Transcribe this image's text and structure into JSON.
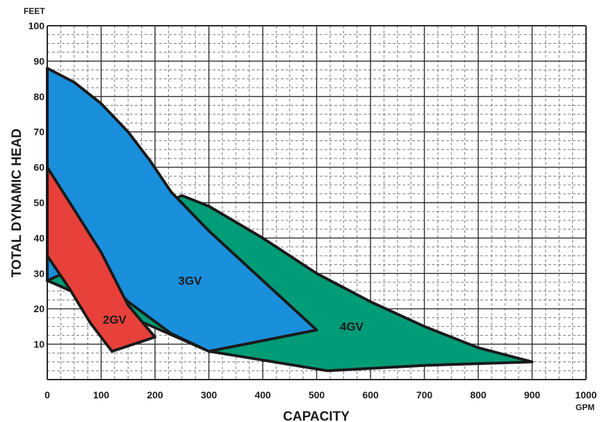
{
  "chart_data": {
    "type": "area",
    "title": "",
    "xlabel": "CAPACITY",
    "ylabel": "TOTAL DYNAMIC HEAD",
    "x_unit": "GPM",
    "y_unit": "FEET",
    "xlim": [
      0,
      1000
    ],
    "ylim": [
      0,
      100
    ],
    "x_ticks": [
      "0",
      "100",
      "200",
      "300",
      "400",
      "500",
      "600",
      "700",
      "800",
      "900",
      "1000"
    ],
    "y_ticks": [
      "10",
      "20",
      "30",
      "40",
      "50",
      "60",
      "70",
      "80",
      "90",
      "100"
    ],
    "grid": true,
    "legend": "none",
    "series": [
      {
        "name": "4GV",
        "color": "#009b77",
        "label_at": [
          565,
          15
        ],
        "points": [
          [
            0,
            28
          ],
          [
            0,
            35
          ],
          [
            250,
            52
          ],
          [
            300,
            49
          ],
          [
            400,
            40
          ],
          [
            500,
            30
          ],
          [
            600,
            22
          ],
          [
            700,
            15
          ],
          [
            800,
            9
          ],
          [
            900,
            5
          ],
          [
            700,
            4
          ],
          [
            520,
            2.5
          ],
          [
            420,
            5
          ],
          [
            300,
            8
          ]
        ]
      },
      {
        "name": "3GV",
        "color": "#1a8fdc",
        "label_at": [
          265,
          28
        ],
        "points": [
          [
            0,
            88
          ],
          [
            50,
            84
          ],
          [
            100,
            78
          ],
          [
            150,
            70
          ],
          [
            190,
            62
          ],
          [
            230,
            53
          ],
          [
            300,
            42
          ],
          [
            400,
            28
          ],
          [
            500,
            14
          ],
          [
            400,
            11
          ],
          [
            300,
            8
          ],
          [
            230,
            13
          ],
          [
            150,
            22
          ],
          [
            100,
            30
          ],
          [
            30,
            30
          ],
          [
            0,
            28
          ]
        ]
      },
      {
        "name": "2GV",
        "color": "#e8403a",
        "label_at": [
          125,
          17
        ],
        "points": [
          [
            0,
            60
          ],
          [
            50,
            48
          ],
          [
            100,
            36
          ],
          [
            150,
            21
          ],
          [
            200,
            12
          ],
          [
            120,
            8
          ],
          [
            80,
            16
          ],
          [
            40,
            26
          ],
          [
            0,
            35
          ]
        ]
      }
    ]
  }
}
